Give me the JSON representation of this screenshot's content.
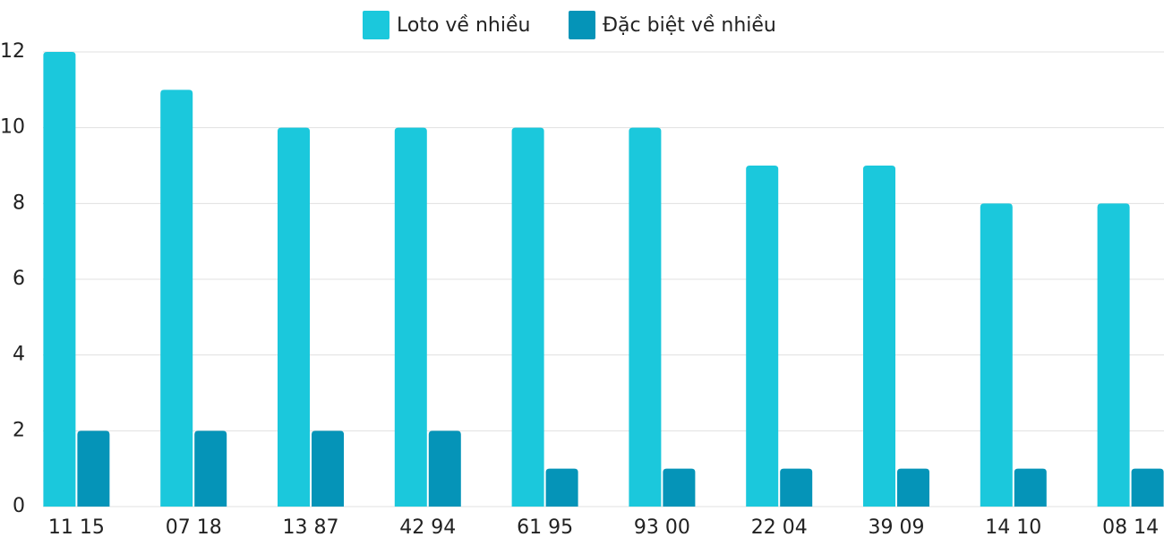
{
  "chart_data": {
    "type": "bar",
    "categories": [
      "11 15",
      "07 18",
      "13 87",
      "42 94",
      "61 95",
      "93 00",
      "22 04",
      "39 09",
      "14 10",
      "08 14"
    ],
    "series": [
      {
        "name": "Loto về nhiều",
        "color": "#1bc8dc",
        "values": [
          12,
          11,
          10,
          10,
          10,
          10,
          9,
          9,
          8,
          8
        ]
      },
      {
        "name": "Đặc biệt về nhiều",
        "color": "#0594b8",
        "values": [
          2,
          2,
          2,
          2,
          1,
          1,
          1,
          1,
          1,
          1
        ]
      }
    ],
    "ylim": [
      0,
      12
    ],
    "yticks": [
      0,
      2,
      4,
      6,
      8,
      10,
      12
    ],
    "grid": true,
    "legend": "top"
  }
}
